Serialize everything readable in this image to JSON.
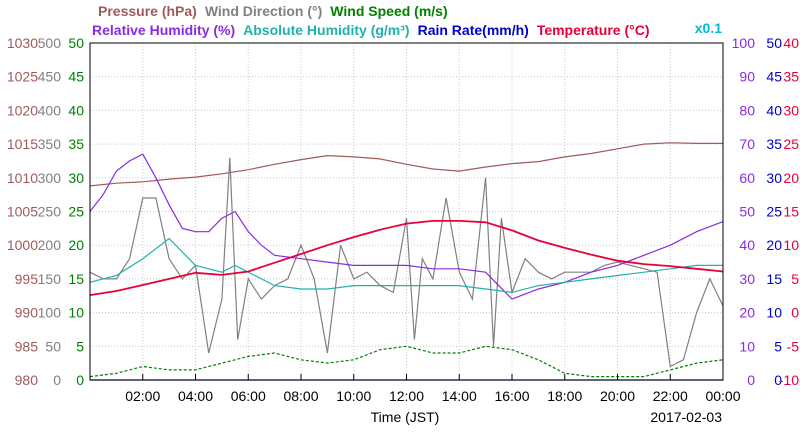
{
  "chart_data": {
    "type": "line",
    "date": "2017-02-03",
    "xlabel": "Time (JST)",
    "x_ticks": [
      "02:00",
      "04:00",
      "06:00",
      "08:00",
      "10:00",
      "12:00",
      "14:00",
      "16:00",
      "18:00",
      "20:00",
      "22:00",
      "00:00"
    ],
    "x_range_hours": [
      0,
      24
    ],
    "grid": true,
    "legend": {
      "row1": [
        {
          "label": "Pressure (hPa)",
          "color": "#a05a5a"
        },
        {
          "label": "Wind Direction (°)",
          "color": "#808080"
        },
        {
          "label": "Wind Speed (m/s)",
          "color": "#008000"
        }
      ],
      "row2": [
        {
          "label": "Relative Humidity (%)",
          "color": "#8a2be2"
        },
        {
          "label": "Absolute Humidity (g/m³)",
          "color": "#20b2aa"
        },
        {
          "label": "Rain Rate(mm/h)",
          "color": "#0000cd"
        },
        {
          "label": "Temperature (°C)",
          "color": "#e8003a"
        }
      ],
      "scale_note": {
        "label": "x0.1",
        "color": "#00bcd4"
      }
    },
    "axes": [
      {
        "name": "Pressure",
        "side": "left",
        "color": "#a05a5a",
        "range": [
          980,
          1030
        ],
        "ticks": [
          "980",
          "985",
          "990",
          "995",
          "1000",
          "1005",
          "1010",
          "1015",
          "1020",
          "1025",
          "1030"
        ]
      },
      {
        "name": "Wind Direction",
        "side": "left",
        "color": "#808080",
        "range": [
          0,
          500
        ],
        "ticks": [
          "0",
          "50",
          "100",
          "150",
          "200",
          "250",
          "300",
          "350",
          "400",
          "450",
          "500"
        ]
      },
      {
        "name": "Wind Speed",
        "side": "left",
        "color": "#008000",
        "range": [
          0,
          50
        ],
        "ticks": [
          "0",
          "5",
          "10",
          "15",
          "20",
          "25",
          "30",
          "35",
          "40",
          "45",
          "50"
        ]
      },
      {
        "name": "Relative Humidity",
        "side": "right",
        "color": "#8a2be2",
        "range": [
          0,
          100
        ],
        "ticks": [
          "0",
          "10",
          "20",
          "30",
          "40",
          "50",
          "60",
          "70",
          "80",
          "90",
          "100"
        ]
      },
      {
        "name": "Rain Rate",
        "side": "right",
        "color": "#0000cd",
        "range": [
          0,
          50
        ],
        "ticks": [
          "0",
          "5",
          "10",
          "15",
          "20",
          "25",
          "30",
          "35",
          "40",
          "45",
          "50"
        ]
      },
      {
        "name": "Temperature",
        "side": "right",
        "color": "#e8003a",
        "range": [
          -10,
          40
        ],
        "ticks": [
          "-10",
          "-5",
          "0",
          "5",
          "10",
          "15",
          "20",
          "25",
          "30",
          "35",
          "40"
        ]
      }
    ],
    "series": [
      {
        "name": "Pressure",
        "axis": "Pressure",
        "color": "#a05a5a",
        "x": [
          0,
          1,
          2,
          3,
          4,
          5,
          6,
          7,
          8,
          9,
          10,
          11,
          12,
          13,
          14,
          15,
          16,
          17,
          18,
          19,
          20,
          21,
          22,
          23,
          24
        ],
        "y": [
          1008.8,
          1009.2,
          1009.4,
          1009.8,
          1010.1,
          1010.6,
          1011.2,
          1012.0,
          1012.7,
          1013.3,
          1013.1,
          1012.8,
          1012.0,
          1011.3,
          1011.0,
          1011.6,
          1012.1,
          1012.4,
          1013.1,
          1013.6,
          1014.3,
          1015.0,
          1015.2,
          1015.1,
          1015.1
        ]
      },
      {
        "name": "Wind Direction",
        "axis": "Wind Direction",
        "color": "#808080",
        "x": [
          0,
          0.5,
          1,
          1.5,
          2,
          2.5,
          3,
          3.5,
          4,
          4.5,
          5,
          5.3,
          5.6,
          6,
          6.5,
          7,
          7.5,
          8,
          8.5,
          9,
          9.5,
          10,
          10.5,
          11,
          11.5,
          12,
          12.3,
          12.6,
          13,
          13.5,
          14,
          14.5,
          15,
          15.3,
          15.6,
          16,
          16.5,
          17,
          17.5,
          18,
          18.5,
          19,
          19.5,
          20,
          20.5,
          21,
          21.5,
          22,
          22.5,
          23,
          23.5,
          24
        ],
        "y": [
          160,
          150,
          150,
          180,
          270,
          270,
          180,
          150,
          170,
          40,
          120,
          330,
          60,
          150,
          120,
          140,
          150,
          200,
          150,
          40,
          200,
          150,
          160,
          140,
          130,
          240,
          60,
          180,
          150,
          270,
          160,
          120,
          300,
          50,
          240,
          130,
          180,
          160,
          150,
          160,
          160,
          160,
          170,
          175,
          170,
          165,
          160,
          20,
          30,
          100,
          150,
          110
        ]
      },
      {
        "name": "Wind Speed",
        "axis": "Wind Speed",
        "color": "#008000",
        "x": [
          0,
          1,
          2,
          3,
          4,
          5,
          6,
          7,
          8,
          9,
          10,
          11,
          12,
          13,
          14,
          15,
          16,
          17,
          18,
          19,
          20,
          21,
          22,
          23,
          24
        ],
        "y": [
          0.5,
          1.0,
          2.0,
          1.5,
          1.5,
          2.5,
          3.5,
          4.0,
          3.0,
          2.5,
          3.0,
          4.5,
          5.0,
          4.0,
          4.0,
          5.0,
          4.5,
          3.0,
          1.0,
          0.5,
          0.5,
          0.5,
          1.5,
          2.5,
          3.0
        ]
      },
      {
        "name": "Relative Humidity",
        "axis": "Relative Humidity",
        "color": "#8a2be2",
        "x": [
          0,
          0.5,
          1,
          1.5,
          2,
          2.5,
          3,
          3.5,
          4,
          4.5,
          5,
          5.5,
          6,
          6.5,
          7,
          8,
          9,
          10,
          11,
          12,
          13,
          14,
          15,
          16,
          17,
          18,
          19,
          20,
          21,
          22,
          23,
          24
        ],
        "y": [
          50,
          55,
          62,
          65,
          67,
          60,
          52,
          45,
          44,
          44,
          48,
          50,
          44,
          40,
          37,
          36,
          35,
          34,
          34,
          34,
          33,
          33,
          32,
          24,
          27,
          29,
          32,
          34,
          37,
          40,
          44,
          47
        ]
      },
      {
        "name": "Absolute Humidity (x0.1)",
        "axis": "Relative Humidity",
        "color": "#20b2aa",
        "x": [
          0,
          1,
          2,
          3,
          4,
          5,
          5.5,
          6,
          7,
          8,
          9,
          10,
          11,
          12,
          13,
          14,
          15,
          16,
          17,
          18,
          19,
          20,
          21,
          22,
          23,
          24
        ],
        "y": [
          29,
          31,
          36,
          42,
          34,
          32,
          34,
          32,
          28,
          27,
          27,
          28,
          28,
          28,
          28,
          28,
          27,
          26,
          28,
          29,
          30,
          31,
          32,
          33,
          34,
          34
        ]
      },
      {
        "name": "Rain Rate",
        "axis": "Rain Rate",
        "color": "#0000cd",
        "x": [
          0,
          24
        ],
        "y": [
          0,
          0
        ]
      },
      {
        "name": "Temperature",
        "axis": "Temperature",
        "color": "#e8003a",
        "x": [
          0,
          1,
          2,
          3,
          4,
          5,
          6,
          7,
          8,
          9,
          10,
          11,
          12,
          13,
          14,
          15,
          16,
          17,
          18,
          19,
          20,
          21,
          22,
          23,
          24
        ],
        "y": [
          2.6,
          3.2,
          4.1,
          5.0,
          5.9,
          5.6,
          6.1,
          7.4,
          8.7,
          10.0,
          11.2,
          12.3,
          13.2,
          13.6,
          13.6,
          13.4,
          12.2,
          10.7,
          9.6,
          8.6,
          7.7,
          7.2,
          6.9,
          6.5,
          6.1
        ]
      }
    ]
  }
}
